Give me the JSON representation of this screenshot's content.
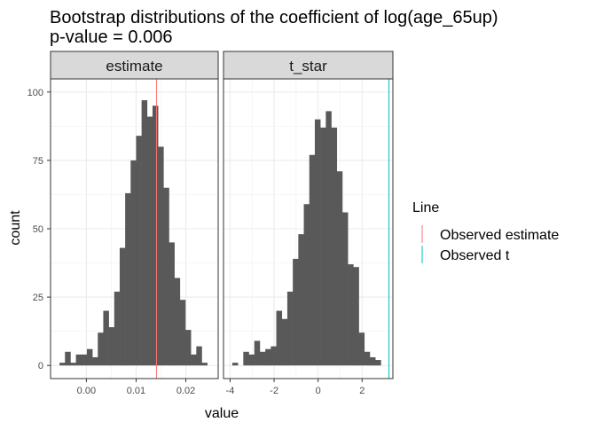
{
  "chart_data": {
    "type": "bar",
    "title": "Bootstrap distributions of the coefficient of log(age_65up)",
    "subtitle": "p-value = 0.006",
    "xlabel": "value",
    "ylabel": "count",
    "grid": true,
    "legend": {
      "title": "Line",
      "position": "right",
      "entries": [
        {
          "label": "Observed estimate",
          "color": "#F8766D"
        },
        {
          "label": "Observed t",
          "color": "#00BFC4"
        }
      ]
    },
    "ylim": [
      -4.8,
      104.8
    ],
    "y_ticks": [
      0,
      25,
      50,
      75,
      100
    ],
    "panels": [
      {
        "strip": "estimate",
        "xlim": [
          -0.0072,
          0.0265
        ],
        "x_ticks": [
          0.0,
          0.01,
          0.02
        ],
        "x_tick_labels": [
          "0.00",
          "0.01",
          "0.02"
        ],
        "bin_starts": [
          -0.0054,
          -0.0043,
          -0.0032,
          -0.0021,
          -0.001,
          0.0001,
          0.0012,
          0.0023,
          0.0034,
          0.0045,
          0.0056,
          0.0067,
          0.0078,
          0.0089,
          0.01,
          0.0111,
          0.0122,
          0.0133,
          0.0144,
          0.0155,
          0.0166,
          0.0177,
          0.0188,
          0.0199,
          0.021,
          0.0221,
          0.0232
        ],
        "bin_width": 0.0011,
        "counts": [
          1,
          5,
          1,
          4,
          4,
          6,
          3,
          12,
          20,
          14,
          27,
          43,
          63,
          75,
          84,
          97,
          91,
          95,
          80,
          65,
          45,
          32,
          24,
          13,
          4,
          7,
          1
        ],
        "vline": {
          "x": 0.0141,
          "color": "#F8766D",
          "label": "Observed estimate"
        }
      },
      {
        "strip": "t_star",
        "xlim": [
          -4.3,
          3.4
        ],
        "x_ticks": [
          -4,
          -2,
          0,
          2
        ],
        "x_tick_labels": [
          "-4",
          "-2",
          "0",
          "2"
        ],
        "bin_starts": [
          -3.9,
          -3.65,
          -3.4,
          -3.15,
          -2.9,
          -2.65,
          -2.4,
          -2.15,
          -1.9,
          -1.65,
          -1.4,
          -1.15,
          -0.9,
          -0.65,
          -0.4,
          -0.15,
          0.1,
          0.35,
          0.6,
          0.85,
          1.1,
          1.35,
          1.6,
          1.85,
          2.1,
          2.35,
          2.6,
          2.85
        ],
        "bin_width": 0.25,
        "counts": [
          1,
          0,
          5,
          4,
          9,
          5,
          6,
          7,
          20,
          17,
          27,
          39,
          48,
          59,
          77,
          90,
          87,
          93,
          87,
          71,
          56,
          37,
          36,
          12,
          5,
          3,
          2,
          0
        ],
        "vline": {
          "x": 3.22,
          "color": "#00BFC4",
          "label": "Observed t"
        }
      }
    ]
  }
}
